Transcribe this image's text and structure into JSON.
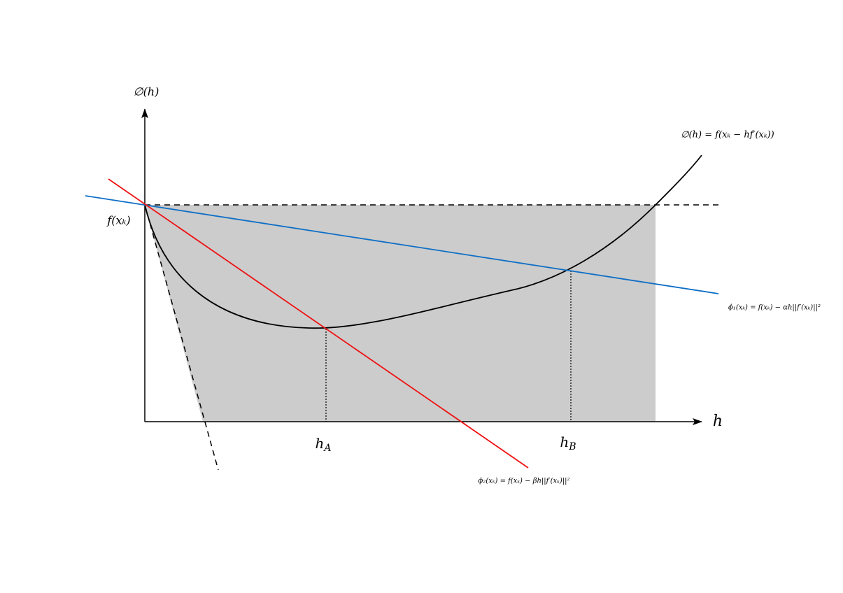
{
  "axes": {
    "y_label": "∅(h)",
    "x_label": "h"
  },
  "labels": {
    "f_xk": "f(xₖ)",
    "h_A": {
      "main": "h",
      "sub": "A"
    },
    "h_B": {
      "main": "h",
      "sub": "B"
    },
    "phi": "∅(h) = f(xₖ − hf′(xₖ))",
    "phi1": "ϕ₁(xₖ) = f(xₖ) − αh||f′(xₖ)||²",
    "phi2": "ϕ₂(xₖ) = f(xₖ) − βh||f′(xₖ)||²"
  }
}
